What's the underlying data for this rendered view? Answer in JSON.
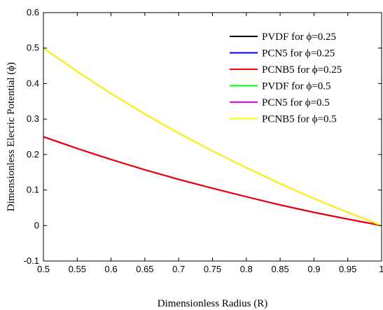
{
  "chart_data": {
    "type": "line",
    "title": "",
    "xlabel": "Dimensionless Radius (R)",
    "ylabel": "Dimensionless Elecric Potential (ϕ)",
    "xlim": [
      0.5,
      1.0
    ],
    "ylim": [
      -0.1,
      0.6
    ],
    "xticks": [
      "0.5",
      "0.55",
      "0.6",
      "0.65",
      "0.7",
      "0.75",
      "0.8",
      "0.85",
      "0.9",
      "0.95",
      "1"
    ],
    "yticks": [
      "-0.1",
      "0",
      "0.1",
      "0.2",
      "0.3",
      "0.4",
      "0.5",
      "0.6"
    ],
    "grid": false,
    "legend_position": "top-right",
    "x": [
      0.5,
      0.55,
      0.6,
      0.65,
      0.7,
      0.75,
      0.8,
      0.85,
      0.9,
      0.95,
      1.0
    ],
    "series": [
      {
        "name": "PVDF for ϕ=0.25",
        "color": "#000000",
        "values": [
          0.25,
          0.217,
          0.186,
          0.157,
          0.13,
          0.105,
          0.081,
          0.058,
          0.037,
          0.018,
          0.0
        ]
      },
      {
        "name": "PCN5 for ϕ=0.25",
        "color": "#0000ff",
        "values": [
          0.25,
          0.217,
          0.186,
          0.157,
          0.13,
          0.105,
          0.081,
          0.058,
          0.037,
          0.018,
          0.0
        ]
      },
      {
        "name": "PCNB5 for ϕ=0.25",
        "color": "#ff0000",
        "values": [
          0.25,
          0.217,
          0.186,
          0.157,
          0.13,
          0.105,
          0.081,
          0.058,
          0.037,
          0.018,
          0.0
        ]
      },
      {
        "name": "PVDF for ϕ=0.5",
        "color": "#00ff00",
        "values": [
          0.5,
          0.434,
          0.372,
          0.314,
          0.26,
          0.21,
          0.163,
          0.118,
          0.076,
          0.037,
          0.0
        ]
      },
      {
        "name": "PCN5 for ϕ=0.5",
        "color": "#ff00ff",
        "values": [
          0.5,
          0.434,
          0.372,
          0.314,
          0.26,
          0.21,
          0.163,
          0.118,
          0.076,
          0.037,
          0.0
        ]
      },
      {
        "name": "PCNB5 for ϕ=0.5",
        "color": "#ffff00",
        "values": [
          0.5,
          0.434,
          0.372,
          0.314,
          0.26,
          0.21,
          0.163,
          0.118,
          0.076,
          0.037,
          0.0
        ]
      }
    ]
  }
}
